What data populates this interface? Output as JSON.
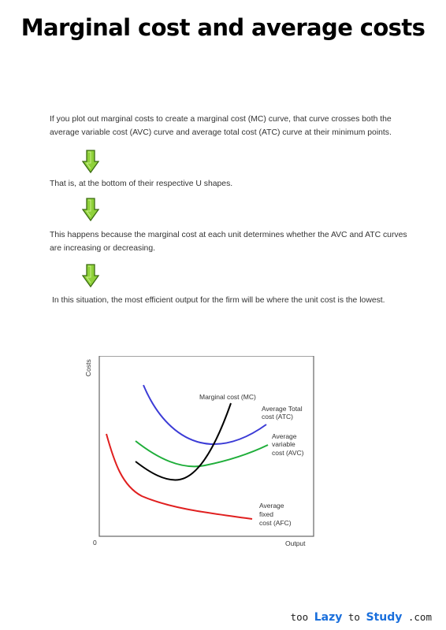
{
  "title": "Marginal cost and average costs",
  "paragraphs": [
    "If you plot out marginal costs to create a marginal cost (MC) curve, that curve crosses both the average variable cost (AVC) curve and average total cost (ATC) curve at their minimum points.",
    "That is, at the bottom of their respective U shapes.",
    "This happens because the marginal cost at each unit determines whether the AVC and ATC curves are increasing or decreasing.",
    "In this situation, the most efficient output for the firm will be where the unit cost is the lowest."
  ],
  "arrow_icon": "down-arrow-icon",
  "colors": {
    "arrow_fill": "#8fd13a",
    "arrow_stroke": "#3b6b12"
  },
  "chart": {
    "ylabel": "Costs",
    "xlabel": "Output",
    "origin": "0",
    "labels": {
      "mc": "Marginal cost (MC)",
      "atc": [
        "Average Total",
        "cost (ATC)"
      ],
      "avc": [
        "Average",
        "variable",
        "cost (AVC)"
      ],
      "afc": [
        "Average",
        "fixed",
        "cost (AFC)"
      ]
    }
  },
  "chart_data": {
    "type": "line",
    "xlabel": "Output",
    "ylabel": "Costs",
    "series": [
      {
        "name": "Marginal cost (MC)",
        "color": "#000000"
      },
      {
        "name": "Average Total cost (ATC)",
        "color": "#3b3bd6"
      },
      {
        "name": "Average variable cost (AVC)",
        "color": "#1fae3a"
      },
      {
        "name": "Average fixed cost (AFC)",
        "color": "#e01f1f"
      }
    ]
  },
  "footer": {
    "prefix": "too ",
    "brand1": "Lazy",
    "mid": " to ",
    "brand2": "Study",
    "suffix": " .com"
  }
}
